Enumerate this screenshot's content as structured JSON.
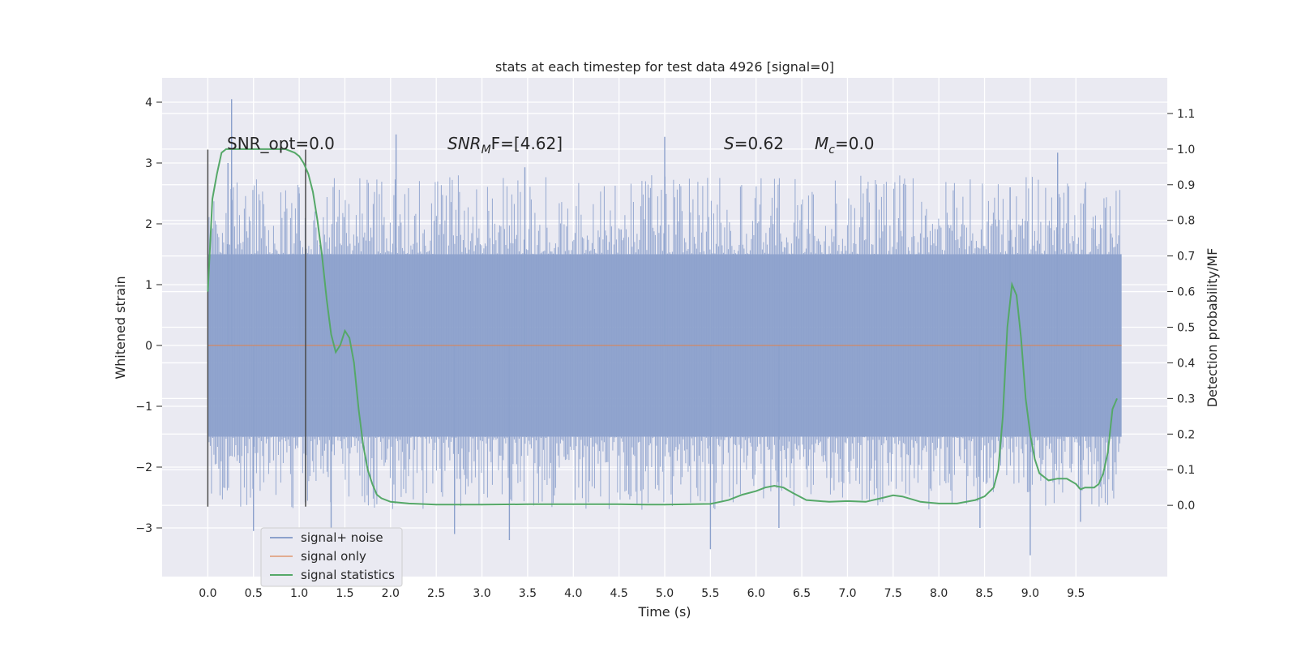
{
  "chart_data": {
    "type": "line",
    "title": "stats at each timestep for test data 4926 [signal=0]",
    "xlabel": "Time (s)",
    "ylabel_left": "Whitened strain",
    "ylabel_right": "Detection probability/MF",
    "xlim": [
      -0.5,
      10.5
    ],
    "ylim_left": [
      -3.8,
      4.4
    ],
    "ylim_right": [
      -0.2,
      1.2
    ],
    "x_ticks": [
      "0.0",
      "0.5",
      "1.0",
      "1.5",
      "2.0",
      "2.5",
      "3.0",
      "3.5",
      "4.0",
      "4.5",
      "5.0",
      "5.5",
      "6.0",
      "6.5",
      "7.0",
      "7.5",
      "8.0",
      "8.5",
      "9.0",
      "9.5"
    ],
    "y_ticks_left": [
      "4",
      "3",
      "2",
      "1",
      "0",
      "−1",
      "−2",
      "−3"
    ],
    "y_ticks_right": [
      "1.1",
      "1.0",
      "0.9",
      "0.8",
      "0.7",
      "0.6",
      "0.5",
      "0.4",
      "0.3",
      "0.2",
      "0.1",
      "0.0"
    ],
    "grid": true,
    "legend_position": "lower-left",
    "annotations": {
      "snr_opt": "SNR_opt=0.0",
      "snr_mf_label": "SNR",
      "snr_mf_sub": "M",
      "snr_mf_rest": "F=[4.62]",
      "s_label": "S",
      "s_value": "=0.62",
      "mc_label": "M",
      "mc_sub": "c",
      "mc_value": "=0.0"
    },
    "vertical_lines_x": [
      0.0,
      1.07
    ],
    "series": [
      {
        "name": "signal+ noise",
        "axis": "left",
        "color": "#8ca1cc",
        "render": "noise_band",
        "x_range": [
          0.0,
          10.0
        ],
        "typical_band": [
          -1.5,
          1.5
        ],
        "peaks": [
          [
            0.26,
            4.05
          ],
          [
            2.06,
            3.47
          ],
          [
            5.0,
            3.43
          ],
          [
            9.3,
            3.17
          ],
          [
            0.22,
            3.0
          ],
          [
            3.47,
            2.93
          ],
          [
            8.78,
            2.6
          ],
          [
            1.0,
            2.5
          ]
        ],
        "troughs": [
          [
            9.0,
            -3.45
          ],
          [
            5.5,
            -3.35
          ],
          [
            0.5,
            -3.05
          ],
          [
            2.7,
            -3.1
          ],
          [
            3.3,
            -3.2
          ],
          [
            1.35,
            -3.0
          ],
          [
            6.25,
            -3.0
          ],
          [
            8.45,
            -3.0
          ],
          [
            9.55,
            -2.9
          ]
        ]
      },
      {
        "name": "signal only",
        "axis": "left",
        "color": "#dd8452",
        "x": [
          0.0,
          10.0
        ],
        "y": [
          0.0,
          0.0
        ]
      },
      {
        "name": "signal statistics",
        "axis": "right",
        "color": "#55a868",
        "x": [
          0.0,
          0.05,
          0.1,
          0.15,
          0.2,
          0.3,
          0.5,
          0.7,
          0.85,
          0.95,
          1.0,
          1.05,
          1.1,
          1.15,
          1.2,
          1.25,
          1.3,
          1.35,
          1.4,
          1.45,
          1.5,
          1.55,
          1.6,
          1.65,
          1.7,
          1.75,
          1.8,
          1.85,
          1.9,
          2.0,
          2.2,
          2.5,
          3.0,
          3.5,
          4.0,
          4.5,
          4.8,
          5.0,
          5.5,
          5.7,
          5.85,
          6.0,
          6.1,
          6.2,
          6.3,
          6.4,
          6.55,
          6.8,
          7.0,
          7.2,
          7.4,
          7.5,
          7.6,
          7.8,
          8.0,
          8.2,
          8.4,
          8.5,
          8.6,
          8.65,
          8.7,
          8.75,
          8.8,
          8.85,
          8.9,
          8.95,
          9.0,
          9.05,
          9.1,
          9.2,
          9.3,
          9.4,
          9.5,
          9.55,
          9.6,
          9.7,
          9.75,
          9.8,
          9.85,
          9.9,
          9.95
        ],
        "y": [
          0.6,
          0.86,
          0.93,
          0.99,
          1.0,
          1.0,
          1.0,
          1.0,
          1.0,
          0.99,
          0.98,
          0.96,
          0.93,
          0.88,
          0.8,
          0.7,
          0.58,
          0.48,
          0.43,
          0.45,
          0.49,
          0.47,
          0.4,
          0.27,
          0.17,
          0.1,
          0.06,
          0.03,
          0.02,
          0.01,
          0.005,
          0.002,
          0.002,
          0.003,
          0.003,
          0.003,
          0.002,
          0.002,
          0.004,
          0.015,
          0.03,
          0.04,
          0.05,
          0.055,
          0.05,
          0.035,
          0.015,
          0.01,
          0.012,
          0.01,
          0.022,
          0.028,
          0.025,
          0.01,
          0.005,
          0.005,
          0.015,
          0.025,
          0.05,
          0.1,
          0.25,
          0.5,
          0.62,
          0.59,
          0.47,
          0.3,
          0.2,
          0.13,
          0.09,
          0.07,
          0.075,
          0.075,
          0.06,
          0.045,
          0.05,
          0.05,
          0.06,
          0.09,
          0.15,
          0.27,
          0.3
        ]
      }
    ]
  }
}
